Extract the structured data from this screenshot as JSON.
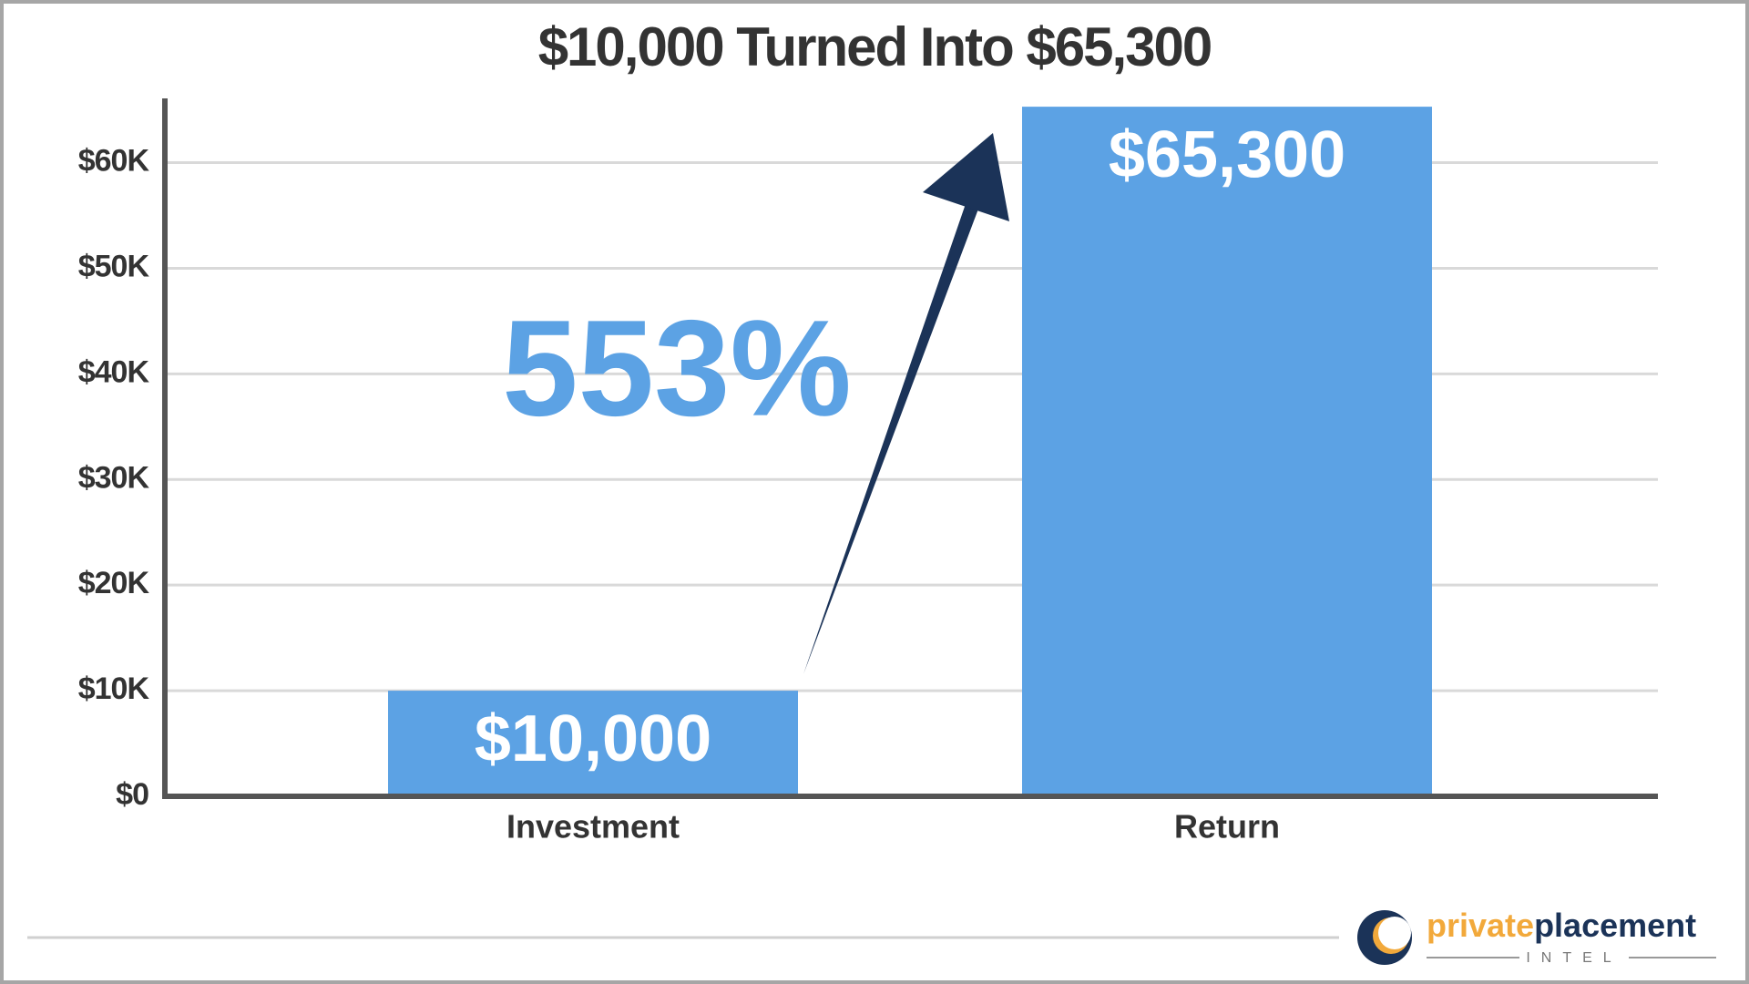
{
  "chart_data": {
    "type": "bar",
    "title": "$10,000 Turned Into $65,300",
    "categories": [
      "Investment",
      "Return"
    ],
    "values": [
      10000,
      65300
    ],
    "value_labels": [
      "$10,000",
      "$65,300"
    ],
    "color": "#5ca2e4",
    "ylim": [
      0,
      66000
    ],
    "yticks": [
      {
        "value": 0,
        "label": "$0"
      },
      {
        "value": 10000,
        "label": "$10K"
      },
      {
        "value": 20000,
        "label": "$20K"
      },
      {
        "value": 30000,
        "label": "$30K"
      },
      {
        "value": 40000,
        "label": "$40K"
      },
      {
        "value": 50000,
        "label": "$50K"
      },
      {
        "value": 60000,
        "label": "$60K"
      }
    ],
    "grid": true,
    "annotation": "553%"
  },
  "logo": {
    "word1": "private",
    "word2": "placement",
    "subtitle": "INTEL"
  }
}
